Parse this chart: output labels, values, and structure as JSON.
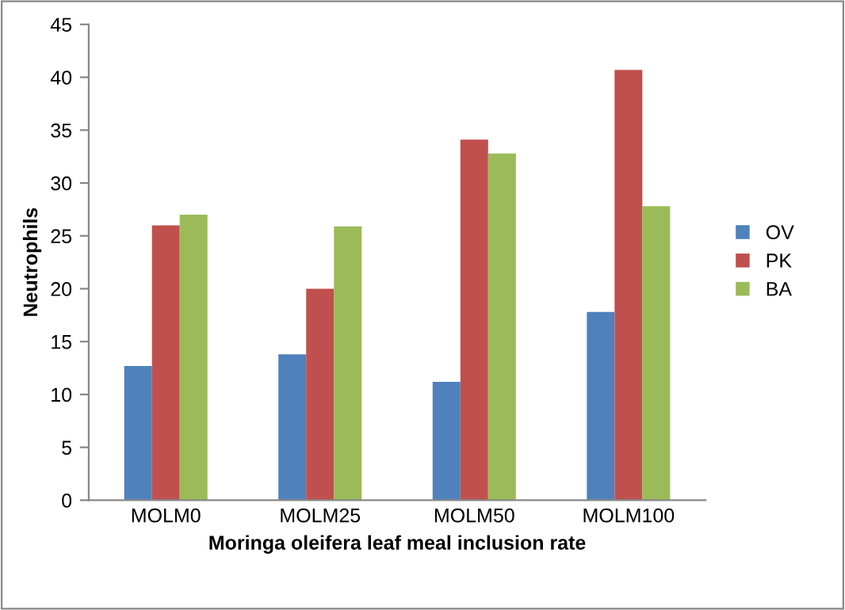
{
  "chart_data": {
    "type": "bar",
    "xlabel": "Moringa oleifera leaf meal inclusion rate",
    "ylabel": "Neutrophils",
    "categories": [
      "MOLM0",
      "MOLM25",
      "MOLM50",
      "MOLM100"
    ],
    "series": [
      {
        "name": "OV",
        "color": "#4f81bd",
        "values": [
          12.7,
          13.8,
          11.2,
          17.8
        ]
      },
      {
        "name": "PK",
        "color": "#c0504d",
        "values": [
          26.0,
          20.0,
          34.1,
          40.7
        ]
      },
      {
        "name": "BA",
        "color": "#9bbb59",
        "values": [
          27.0,
          25.9,
          32.8,
          27.8
        ]
      }
    ],
    "ylim": [
      0,
      45
    ],
    "yticks": [
      0,
      5,
      10,
      15,
      20,
      25,
      30,
      35,
      40,
      45
    ],
    "grid": false,
    "legend": "right"
  }
}
